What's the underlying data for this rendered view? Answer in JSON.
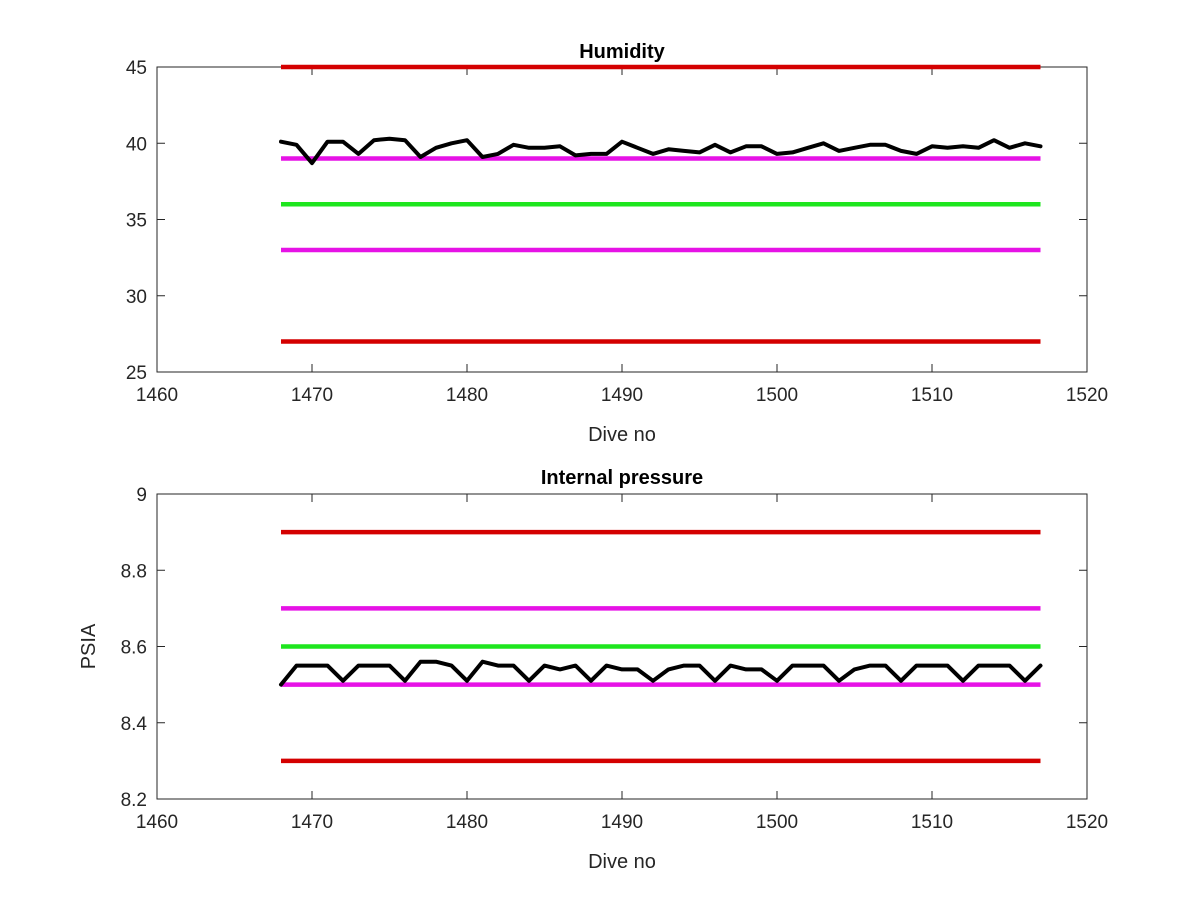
{
  "colors": {
    "data_line": "#000000",
    "critical": "#d40000",
    "warning": "#e612e6",
    "nominal": "#1ee61e",
    "axis": "#262626"
  },
  "chart_data": [
    {
      "type": "line",
      "title": "Humidity",
      "xlabel": "Dive no",
      "ylabel": "",
      "xlim": [
        1460,
        1520
      ],
      "ylim": [
        25,
        45
      ],
      "xticks": [
        1460,
        1470,
        1480,
        1490,
        1500,
        1510,
        1520
      ],
      "yticks": [
        25,
        30,
        35,
        40,
        45
      ],
      "grid": false,
      "threshold_lines": [
        {
          "level": "critical-high",
          "y": 45,
          "x": [
            1468,
            1517
          ],
          "color": "#d40000"
        },
        {
          "level": "warning-high",
          "y": 39,
          "x": [
            1468,
            1517
          ],
          "color": "#e612e6"
        },
        {
          "level": "nominal",
          "y": 36,
          "x": [
            1468,
            1517
          ],
          "color": "#1ee61e"
        },
        {
          "level": "warning-low",
          "y": 33,
          "x": [
            1468,
            1517
          ],
          "color": "#e612e6"
        },
        {
          "level": "critical-low",
          "y": 27,
          "x": [
            1468,
            1517
          ],
          "color": "#d40000"
        }
      ],
      "series": [
        {
          "color": "#000000",
          "x": [
            1468,
            1469,
            1470,
            1471,
            1472,
            1473,
            1474,
            1475,
            1476,
            1477,
            1478,
            1479,
            1480,
            1481,
            1482,
            1483,
            1484,
            1485,
            1486,
            1487,
            1488,
            1489,
            1490,
            1491,
            1492,
            1493,
            1494,
            1495,
            1496,
            1497,
            1498,
            1499,
            1500,
            1501,
            1502,
            1503,
            1504,
            1505,
            1506,
            1507,
            1508,
            1509,
            1510,
            1511,
            1512,
            1513,
            1514,
            1515,
            1516,
            1517
          ],
          "y": [
            40.1,
            39.9,
            38.7,
            40.1,
            40.1,
            39.3,
            40.2,
            40.3,
            40.2,
            39.1,
            39.7,
            40.0,
            40.2,
            39.1,
            39.3,
            39.9,
            39.7,
            39.7,
            39.8,
            39.2,
            39.3,
            39.3,
            40.1,
            39.7,
            39.3,
            39.6,
            39.5,
            39.4,
            39.9,
            39.4,
            39.8,
            39.8,
            39.3,
            39.4,
            39.7,
            40.0,
            39.5,
            39.7,
            39.9,
            39.9,
            39.5,
            39.3,
            39.8,
            39.7,
            39.8,
            39.7,
            40.2,
            39.7,
            40.0,
            39.8
          ]
        }
      ]
    },
    {
      "type": "line",
      "title": "Internal pressure",
      "xlabel": "Dive no",
      "ylabel": "PSIA",
      "xlim": [
        1460,
        1520
      ],
      "ylim": [
        8.2,
        9.0
      ],
      "xticks": [
        1460,
        1470,
        1480,
        1490,
        1500,
        1510,
        1520
      ],
      "yticks": [
        8.2,
        8.4,
        8.6,
        8.8,
        9.0
      ],
      "ytick_labels": [
        "8.2",
        "8.4",
        "8.6",
        "8.8",
        "9"
      ],
      "grid": false,
      "threshold_lines": [
        {
          "level": "critical-high",
          "y": 8.9,
          "x": [
            1468,
            1517
          ],
          "color": "#d40000"
        },
        {
          "level": "warning-high",
          "y": 8.7,
          "x": [
            1468,
            1517
          ],
          "color": "#e612e6"
        },
        {
          "level": "nominal",
          "y": 8.6,
          "x": [
            1468,
            1517
          ],
          "color": "#1ee61e"
        },
        {
          "level": "warning-low",
          "y": 8.5,
          "x": [
            1468,
            1517
          ],
          "color": "#e612e6"
        },
        {
          "level": "critical-low",
          "y": 8.3,
          "x": [
            1468,
            1517
          ],
          "color": "#d40000"
        }
      ],
      "series": [
        {
          "color": "#000000",
          "x": [
            1468,
            1469,
            1470,
            1471,
            1472,
            1473,
            1474,
            1475,
            1476,
            1477,
            1478,
            1479,
            1480,
            1481,
            1482,
            1483,
            1484,
            1485,
            1486,
            1487,
            1488,
            1489,
            1490,
            1491,
            1492,
            1493,
            1494,
            1495,
            1496,
            1497,
            1498,
            1499,
            1500,
            1501,
            1502,
            1503,
            1504,
            1505,
            1506,
            1507,
            1508,
            1509,
            1510,
            1511,
            1512,
            1513,
            1514,
            1515,
            1516,
            1517
          ],
          "y": [
            8.5,
            8.55,
            8.55,
            8.55,
            8.51,
            8.55,
            8.55,
            8.55,
            8.51,
            8.56,
            8.56,
            8.55,
            8.51,
            8.56,
            8.55,
            8.55,
            8.51,
            8.55,
            8.54,
            8.55,
            8.51,
            8.55,
            8.54,
            8.54,
            8.51,
            8.54,
            8.55,
            8.55,
            8.51,
            8.55,
            8.54,
            8.54,
            8.51,
            8.55,
            8.55,
            8.55,
            8.51,
            8.54,
            8.55,
            8.55,
            8.51,
            8.55,
            8.55,
            8.55,
            8.51,
            8.55,
            8.55,
            8.55,
            8.51,
            8.55
          ]
        }
      ]
    }
  ]
}
